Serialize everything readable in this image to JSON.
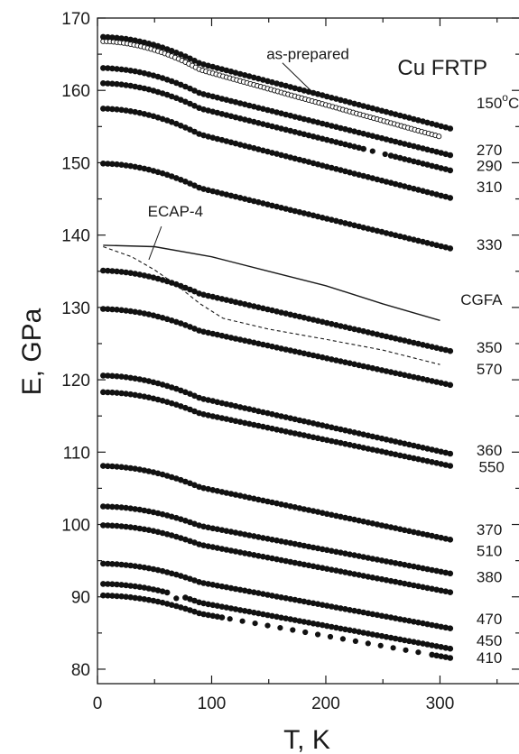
{
  "chart_data": {
    "type": "scatter",
    "title": "Cu FRTP",
    "xlabel": "T, K",
    "ylabel": "E, GPa",
    "xlim": [
      0,
      370
    ],
    "ylim": [
      78,
      170
    ],
    "xticks": [
      0,
      100,
      200,
      300
    ],
    "yticks": [
      80,
      90,
      100,
      110,
      120,
      130,
      140,
      150,
      160,
      170
    ],
    "grid": false,
    "series": [
      {
        "name": "as-prepared",
        "style": "open-circles",
        "T0": 5,
        "T1": 300,
        "E0": 166.8,
        "slope": 0.044,
        "dT": 3,
        "gaps": []
      },
      {
        "name": "150°C",
        "style": "filled-circles",
        "T0": 5,
        "T1": 310,
        "E0": 167.4,
        "slope": 0.041,
        "dT": 4,
        "gaps": []
      },
      {
        "name": "270",
        "style": "filled-circles",
        "T0": 5,
        "T1": 310,
        "E0": 163.1,
        "slope": 0.039,
        "dT": 4,
        "gaps": []
      },
      {
        "name": "290",
        "style": "filled-circles",
        "T0": 5,
        "T1": 310,
        "E0": 161.0,
        "slope": 0.039,
        "dT": 4,
        "gaps": [
          [
            235,
            255
          ]
        ]
      },
      {
        "name": "310",
        "style": "filled-circles",
        "T0": 5,
        "T1": 310,
        "E0": 157.5,
        "slope": 0.04,
        "dT": 4,
        "gaps": []
      },
      {
        "name": "330",
        "style": "filled-circles",
        "T0": 5,
        "T1": 310,
        "E0": 149.9,
        "slope": 0.038,
        "dT": 4,
        "gaps": []
      },
      {
        "name": "350",
        "style": "filled-circles",
        "T0": 5,
        "T1": 310,
        "E0": 135.1,
        "slope": 0.036,
        "dT": 4,
        "gaps": []
      },
      {
        "name": "570",
        "style": "filled-circles",
        "T0": 5,
        "T1": 310,
        "E0": 129.8,
        "slope": 0.034,
        "dT": 4,
        "gaps": []
      },
      {
        "name": "360",
        "style": "filled-circles",
        "T0": 5,
        "T1": 310,
        "E0": 120.6,
        "slope": 0.035,
        "dT": 4,
        "gaps": []
      },
      {
        "name": "550",
        "style": "filled-circles",
        "T0": 5,
        "T1": 310,
        "E0": 118.3,
        "slope": 0.033,
        "dT": 4,
        "gaps": []
      },
      {
        "name": "370",
        "style": "filled-circles",
        "T0": 5,
        "T1": 310,
        "E0": 108.1,
        "slope": 0.033,
        "dT": 4,
        "gaps": []
      },
      {
        "name": "510",
        "style": "filled-circles",
        "T0": 5,
        "T1": 310,
        "E0": 102.5,
        "slope": 0.03,
        "dT": 4,
        "gaps": []
      },
      {
        "name": "380",
        "style": "filled-circles",
        "T0": 5,
        "T1": 310,
        "E0": 99.9,
        "slope": 0.03,
        "dT": 4,
        "gaps": []
      },
      {
        "name": "470",
        "style": "filled-circles",
        "T0": 5,
        "T1": 310,
        "E0": 94.6,
        "slope": 0.029,
        "dT": 4,
        "gaps": []
      },
      {
        "name": "450",
        "style": "filled-circles",
        "T0": 5,
        "T1": 310,
        "E0": 91.8,
        "slope": 0.029,
        "dT": 4,
        "gaps": [
          [
            63,
            77
          ]
        ]
      },
      {
        "name": "410",
        "style": "filled-circles",
        "T0": 5,
        "T1": 310,
        "E0": 90.2,
        "slope": 0.028,
        "dT": 4,
        "gaps": [
          [
            110,
            290
          ]
        ]
      }
    ],
    "lines": [
      {
        "name": "CGFA",
        "style": "solid",
        "points": [
          [
            5,
            138.6
          ],
          [
            50,
            138.4
          ],
          [
            100,
            137.0
          ],
          [
            150,
            135.0
          ],
          [
            200,
            133.0
          ],
          [
            250,
            130.5
          ],
          [
            300,
            128.2
          ]
        ]
      },
      {
        "name": "ECAP-4",
        "style": "dashed",
        "points": [
          [
            5,
            138.4
          ],
          [
            30,
            137.0
          ],
          [
            50,
            135.2
          ],
          [
            70,
            133.0
          ],
          [
            90,
            130.5
          ],
          [
            110,
            128.5
          ],
          [
            150,
            127.0
          ],
          [
            200,
            125.6
          ],
          [
            250,
            124.1
          ],
          [
            300,
            122.1
          ]
        ]
      }
    ],
    "label_values": {
      "as-prepared": [
        148,
        165.1
      ],
      "150°C": [
        332,
        158.3
      ],
      "270": [
        332,
        151.8
      ],
      "290": [
        332,
        149.6
      ],
      "310": [
        332,
        146.7
      ],
      "330": [
        332,
        138.7
      ],
      "CGFA": [
        318,
        131.1
      ],
      "350": [
        332,
        124.5
      ],
      "570": [
        332,
        121.5
      ],
      "360": [
        332,
        110.3
      ],
      "550": [
        334,
        108.0
      ],
      "370": [
        332,
        99.3
      ],
      "510": [
        332,
        96.4
      ],
      "380": [
        332,
        92.8
      ],
      "470": [
        332,
        87.0
      ],
      "450": [
        332,
        84.0
      ],
      "410": [
        332,
        81.6
      ],
      "ECAP-4": [
        44,
        143.3
      ]
    },
    "leaders": [
      {
        "from": [
          162,
          163.8
        ],
        "to": [
          190,
          159.5
        ]
      },
      {
        "from": [
          56,
          141.2
        ],
        "to": [
          45,
          136.6
        ]
      }
    ]
  }
}
